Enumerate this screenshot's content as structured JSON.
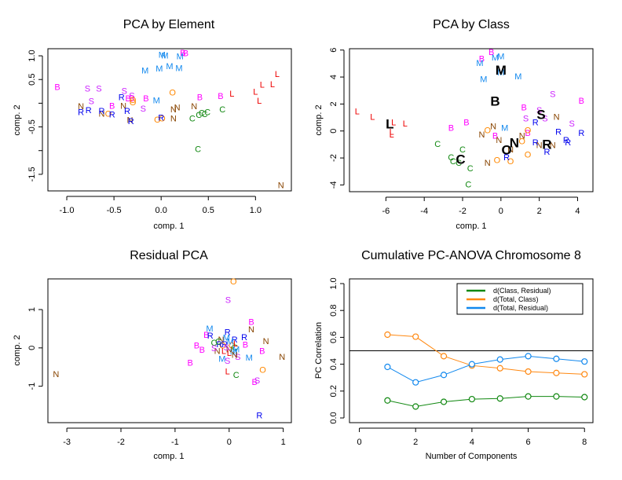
{
  "colors": {
    "B": "#ff00ff",
    "S": "#cc22ff",
    "M": "#1188ee",
    "L": "#ee0000",
    "N": "#884400",
    "R": "#0000ee",
    "O": "#ff8800",
    "C": "#118811",
    "class_center": "#000000"
  },
  "chart_data": [
    {
      "id": "pca-element",
      "type": "scatter",
      "title": "PCA by Element",
      "xlabel": "comp. 1",
      "ylabel": "comp. 2",
      "xlim": [
        -1.2,
        1.38
      ],
      "ylim": [
        -1.85,
        1.15
      ],
      "xticks": [
        -1.0,
        -0.5,
        0.0,
        0.5,
        1.0
      ],
      "xtick_labels": [
        "-1.0",
        "-0.5",
        "0.0",
        "0.5",
        "1.0"
      ],
      "yticks": [
        1.0,
        0.5,
        0.0,
        -0.5,
        -1.0,
        -1.5
      ],
      "ytick_labels": [
        "1.0",
        "0.5",
        "",
        "-0.5",
        "",
        "-1.5"
      ],
      "points": [
        {
          "label": "B",
          "x": -1.1,
          "y": 0.33
        },
        {
          "label": "S",
          "x": -0.78,
          "y": 0.3
        },
        {
          "label": "S",
          "x": -0.66,
          "y": 0.3
        },
        {
          "label": "S",
          "x": -0.74,
          "y": 0.03
        },
        {
          "label": "S",
          "x": -0.39,
          "y": 0.25
        },
        {
          "label": "S",
          "x": -0.31,
          "y": 0.15
        },
        {
          "label": "S",
          "x": -0.19,
          "y": -0.13
        },
        {
          "label": "B",
          "x": -0.52,
          "y": -0.07
        },
        {
          "label": "B",
          "x": -0.35,
          "y": 0.09
        },
        {
          "label": "B",
          "x": -0.31,
          "y": 0.09
        },
        {
          "label": "B",
          "x": -0.16,
          "y": 0.09
        },
        {
          "label": "B",
          "x": 0.41,
          "y": 0.11
        },
        {
          "label": "B",
          "x": 0.63,
          "y": 0.14
        },
        {
          "label": "B",
          "x": 0.23,
          "y": 1.05
        },
        {
          "label": "B",
          "x": 0.26,
          "y": 1.04
        },
        {
          "label": "M",
          "x": 0.01,
          "y": 1.01
        },
        {
          "label": "M",
          "x": 0.04,
          "y": 0.99
        },
        {
          "label": "M",
          "x": 0.2,
          "y": 0.98
        },
        {
          "label": "M",
          "x": -0.17,
          "y": 0.68
        },
        {
          "label": "M",
          "x": -0.02,
          "y": 0.72
        },
        {
          "label": "M",
          "x": 0.09,
          "y": 0.77
        },
        {
          "label": "M",
          "x": 0.19,
          "y": 0.73
        },
        {
          "label": "M",
          "x": -0.05,
          "y": 0.05
        },
        {
          "label": "L",
          "x": 0.75,
          "y": 0.19
        },
        {
          "label": "L",
          "x": 1.0,
          "y": 0.23
        },
        {
          "label": "L",
          "x": 1.07,
          "y": 0.38
        },
        {
          "label": "L",
          "x": 1.18,
          "y": 0.39
        },
        {
          "label": "L",
          "x": 1.23,
          "y": 0.6
        },
        {
          "label": "L",
          "x": 1.04,
          "y": 0.04
        },
        {
          "label": "O",
          "x": 0.12,
          "y": 0.21
        },
        {
          "label": "O",
          "x": -0.3,
          "y": 0.06
        },
        {
          "label": "O",
          "x": -0.3,
          "y": 0.01
        },
        {
          "label": "O",
          "x": -0.56,
          "y": -0.23
        },
        {
          "label": "O",
          "x": -0.04,
          "y": -0.36
        },
        {
          "label": "O",
          "x": 0.01,
          "y": -0.33
        },
        {
          "label": "N",
          "x": -0.85,
          "y": -0.08
        },
        {
          "label": "N",
          "x": -0.63,
          "y": -0.23
        },
        {
          "label": "N",
          "x": -0.4,
          "y": -0.07
        },
        {
          "label": "N",
          "x": -0.33,
          "y": -0.37
        },
        {
          "label": "N",
          "x": 0.13,
          "y": -0.14
        },
        {
          "label": "N",
          "x": 0.17,
          "y": -0.1
        },
        {
          "label": "N",
          "x": 0.35,
          "y": -0.08
        },
        {
          "label": "N",
          "x": 0.13,
          "y": -0.33
        },
        {
          "label": "N",
          "x": 1.27,
          "y": -1.74
        },
        {
          "label": "R",
          "x": -0.85,
          "y": -0.2
        },
        {
          "label": "R",
          "x": -0.77,
          "y": -0.16
        },
        {
          "label": "R",
          "x": -0.63,
          "y": -0.18
        },
        {
          "label": "R",
          "x": -0.52,
          "y": -0.25
        },
        {
          "label": "R",
          "x": -0.42,
          "y": 0.11
        },
        {
          "label": "R",
          "x": -0.36,
          "y": -0.18
        },
        {
          "label": "R",
          "x": -0.32,
          "y": -0.39
        },
        {
          "label": "R",
          "x": 0.0,
          "y": -0.32
        },
        {
          "label": "C",
          "x": 0.33,
          "y": -0.33
        },
        {
          "label": "C",
          "x": 0.4,
          "y": -0.26
        },
        {
          "label": "C",
          "x": 0.43,
          "y": -0.22
        },
        {
          "label": "C",
          "x": 0.46,
          "y": -0.24
        },
        {
          "label": "C",
          "x": 0.49,
          "y": -0.2
        },
        {
          "label": "C",
          "x": 0.65,
          "y": -0.14
        },
        {
          "label": "C",
          "x": 0.39,
          "y": -0.98
        }
      ]
    },
    {
      "id": "pca-class",
      "type": "scatter",
      "title": "PCA by Class",
      "xlabel": "comp. 1",
      "ylabel": "comp. 2",
      "xlim": [
        -7.9,
        4.8
      ],
      "ylim": [
        -4.5,
        6.1
      ],
      "xticks": [
        -6,
        -4,
        -2,
        0,
        2,
        4
      ],
      "xtick_labels": [
        "-6",
        "-4",
        "-2",
        "0",
        "2",
        "4"
      ],
      "yticks": [
        6,
        4,
        2,
        0,
        -2,
        -4
      ],
      "ytick_labels": [
        "6",
        "4",
        "2",
        "0",
        "-2",
        "-4"
      ],
      "points": [
        {
          "label": "L",
          "x": -7.5,
          "y": 1.4
        },
        {
          "label": "L",
          "x": -6.7,
          "y": 1.0
        },
        {
          "label": "L",
          "x": -5.6,
          "y": 0.6
        },
        {
          "label": "L",
          "x": -5.0,
          "y": 0.5
        },
        {
          "label": "L",
          "x": -5.7,
          "y": -0.3
        },
        {
          "label": "L",
          "x": -5.7,
          "y": -0.1
        },
        {
          "label": "B",
          "x": -0.5,
          "y": 5.8
        },
        {
          "label": "B",
          "x": -1.0,
          "y": 5.3
        },
        {
          "label": "B",
          "x": -2.6,
          "y": 0.2
        },
        {
          "label": "B",
          "x": -1.8,
          "y": 0.6
        },
        {
          "label": "B",
          "x": -0.3,
          "y": -0.4
        },
        {
          "label": "B",
          "x": 1.2,
          "y": 1.7
        },
        {
          "label": "B",
          "x": 1.4,
          "y": -0.2
        },
        {
          "label": "B",
          "x": 4.2,
          "y": 2.2
        },
        {
          "label": "M",
          "x": -1.1,
          "y": 5.0
        },
        {
          "label": "M",
          "x": -0.3,
          "y": 5.4
        },
        {
          "label": "M",
          "x": 0.0,
          "y": 5.5
        },
        {
          "label": "M",
          "x": -0.9,
          "y": 3.8
        },
        {
          "label": "M",
          "x": 0.0,
          "y": 4.3
        },
        {
          "label": "M",
          "x": 0.9,
          "y": 4.0
        },
        {
          "label": "M",
          "x": 0.2,
          "y": 0.2
        },
        {
          "label": "S",
          "x": 2.7,
          "y": 2.7
        },
        {
          "label": "S",
          "x": 1.3,
          "y": 0.9
        },
        {
          "label": "S",
          "x": 2.0,
          "y": 1.5
        },
        {
          "label": "S",
          "x": 2.3,
          "y": 0.9
        },
        {
          "label": "S",
          "x": 3.7,
          "y": 0.5
        },
        {
          "label": "N",
          "x": -0.4,
          "y": 0.3
        },
        {
          "label": "N",
          "x": -1.0,
          "y": -0.3
        },
        {
          "label": "N",
          "x": -0.1,
          "y": -0.7
        },
        {
          "label": "N",
          "x": 1.1,
          "y": -0.4
        },
        {
          "label": "N",
          "x": 2.9,
          "y": 1.0
        },
        {
          "label": "N",
          "x": 2.0,
          "y": -1.1
        },
        {
          "label": "N",
          "x": 2.7,
          "y": -1.1
        },
        {
          "label": "N",
          "x": 0.5,
          "y": -1.4
        },
        {
          "label": "N",
          "x": -0.7,
          "y": -2.4
        },
        {
          "label": "O",
          "x": -0.7,
          "y": 0.0
        },
        {
          "label": "O",
          "x": 1.4,
          "y": 0.0
        },
        {
          "label": "O",
          "x": 1.1,
          "y": -0.8
        },
        {
          "label": "O",
          "x": 1.4,
          "y": -1.8
        },
        {
          "label": "O",
          "x": -0.2,
          "y": -2.2
        },
        {
          "label": "O",
          "x": 0.5,
          "y": -2.3
        },
        {
          "label": "R",
          "x": 1.8,
          "y": 0.6
        },
        {
          "label": "R",
          "x": 3.0,
          "y": -0.1
        },
        {
          "label": "R",
          "x": 4.2,
          "y": -0.2
        },
        {
          "label": "R",
          "x": 3.4,
          "y": -0.7
        },
        {
          "label": "R",
          "x": 3.5,
          "y": -0.9
        },
        {
          "label": "R",
          "x": 1.8,
          "y": -0.9
        },
        {
          "label": "R",
          "x": 2.4,
          "y": -1.6
        },
        {
          "label": "R",
          "x": 0.3,
          "y": -2.0
        },
        {
          "label": "C",
          "x": -3.3,
          "y": -1.0
        },
        {
          "label": "C",
          "x": -2.0,
          "y": -1.4
        },
        {
          "label": "C",
          "x": -2.6,
          "y": -2.0
        },
        {
          "label": "C",
          "x": -2.5,
          "y": -2.3
        },
        {
          "label": "C",
          "x": -2.2,
          "y": -2.4
        },
        {
          "label": "C",
          "x": -1.6,
          "y": -2.8
        },
        {
          "label": "C",
          "x": -1.7,
          "y": -4.0
        }
      ],
      "class_centers": [
        {
          "label": "M",
          "x": 0.0,
          "y": 4.5
        },
        {
          "label": "B",
          "x": -0.3,
          "y": 2.2
        },
        {
          "label": "L",
          "x": -5.8,
          "y": 0.5
        },
        {
          "label": "S",
          "x": 2.1,
          "y": 1.2
        },
        {
          "label": "N",
          "x": 0.7,
          "y": -0.9
        },
        {
          "label": "O",
          "x": 0.3,
          "y": -1.4
        },
        {
          "label": "R",
          "x": 2.4,
          "y": -1.0
        },
        {
          "label": "C",
          "x": -2.1,
          "y": -2.1
        }
      ]
    },
    {
      "id": "residual-pca",
      "type": "scatter",
      "title": "Residual PCA",
      "xlabel": "comp. 1",
      "ylabel": "comp. 2",
      "xlim": [
        -3.35,
        1.15
      ],
      "ylim": [
        -1.95,
        1.8
      ],
      "xticks": [
        -3,
        -2,
        -1,
        0,
        1
      ],
      "xtick_labels": [
        "-3",
        "-2",
        "-1",
        "0",
        "1"
      ],
      "yticks": [
        1,
        0,
        -1
      ],
      "ytick_labels": [
        "1",
        "0",
        "-1"
      ],
      "points": [
        {
          "label": "N",
          "x": -3.2,
          "y": -0.7
        },
        {
          "label": "O",
          "x": 0.08,
          "y": 1.72
        },
        {
          "label": "S",
          "x": -0.02,
          "y": 1.24
        },
        {
          "label": "B",
          "x": 0.41,
          "y": 0.66
        },
        {
          "label": "N",
          "x": 0.41,
          "y": 0.47
        },
        {
          "label": "N",
          "x": 0.68,
          "y": 0.16
        },
        {
          "label": "N",
          "x": 0.98,
          "y": -0.25
        },
        {
          "label": "B",
          "x": 0.3,
          "y": 0.07
        },
        {
          "label": "B",
          "x": 0.61,
          "y": -0.1
        },
        {
          "label": "M",
          "x": 0.37,
          "y": -0.27
        },
        {
          "label": "O",
          "x": 0.62,
          "y": -0.59
        },
        {
          "label": "B",
          "x": 0.47,
          "y": -0.91
        },
        {
          "label": "S",
          "x": 0.52,
          "y": -0.86
        },
        {
          "label": "R",
          "x": 0.56,
          "y": -1.78
        },
        {
          "label": "B",
          "x": -0.72,
          "y": -0.4
        },
        {
          "label": "B",
          "x": -0.6,
          "y": 0.05
        },
        {
          "label": "B",
          "x": -0.5,
          "y": -0.06
        },
        {
          "label": "M",
          "x": -0.36,
          "y": 0.49
        },
        {
          "label": "B",
          "x": -0.42,
          "y": 0.32
        },
        {
          "label": "R",
          "x": -0.35,
          "y": 0.3
        },
        {
          "label": "R",
          "x": -0.03,
          "y": 0.4
        },
        {
          "label": "R",
          "x": 0.1,
          "y": 0.2
        },
        {
          "label": "R",
          "x": 0.28,
          "y": 0.26
        },
        {
          "label": "L",
          "x": -0.03,
          "y": -0.63
        },
        {
          "label": "C",
          "x": 0.13,
          "y": -0.72
        },
        {
          "label": "M",
          "x": -0.13,
          "y": -0.3
        },
        {
          "label": "S",
          "x": -0.03,
          "y": -0.35
        },
        {
          "label": "S",
          "x": 0.16,
          "y": -0.25
        },
        {
          "label": "C",
          "x": -0.28,
          "y": 0.12
        },
        {
          "label": "N",
          "x": -0.22,
          "y": -0.1
        },
        {
          "label": "M",
          "x": -0.05,
          "y": 0.25
        },
        {
          "label": "O",
          "x": 0.05,
          "y": 0.05
        },
        {
          "label": "C",
          "x": 0.1,
          "y": 0.0
        },
        {
          "label": "L",
          "x": 0.0,
          "y": -0.15
        },
        {
          "label": "S",
          "x": -0.28,
          "y": -0.02
        },
        {
          "label": "N",
          "x": -0.15,
          "y": 0.2
        },
        {
          "label": "R",
          "x": -0.08,
          "y": 0.08
        },
        {
          "label": "M",
          "x": 0.08,
          "y": -0.12
        },
        {
          "label": "N",
          "x": 0.1,
          "y": -0.2
        },
        {
          "label": "L",
          "x": 0.12,
          "y": 0.1
        },
        {
          "label": "O",
          "x": -0.12,
          "y": 0.05
        },
        {
          "label": "M",
          "x": 0.02,
          "y": 0.15
        },
        {
          "label": "R",
          "x": -0.18,
          "y": 0.08
        },
        {
          "label": "N",
          "x": 0.0,
          "y": -0.05
        },
        {
          "label": "C",
          "x": -0.2,
          "y": 0.15
        },
        {
          "label": "L",
          "x": -0.1,
          "y": -0.1
        },
        {
          "label": "M",
          "x": 0.13,
          "y": -0.05
        },
        {
          "label": "S",
          "x": -0.05,
          "y": 0.0
        }
      ]
    },
    {
      "id": "pc-anova",
      "type": "line",
      "title": "Cumulative PC-ANOVA Chromosome 8",
      "xlabel": "Number of Components",
      "ylabel": "PC Correlation",
      "xlim": [
        -0.35,
        8.3
      ],
      "ylim": [
        -0.035,
        1.035
      ],
      "xticks": [
        0,
        2,
        4,
        6,
        8
      ],
      "xtick_labels": [
        "0",
        "2",
        "4",
        "6",
        "8"
      ],
      "yticks": [
        0.0,
        0.2,
        0.4,
        0.6,
        0.8,
        1.0
      ],
      "ytick_labels": [
        "0.0",
        "0.2",
        "0.4",
        "0.6",
        "0.8",
        "1.0"
      ],
      "hline": 0.5,
      "legend_position": "top-right",
      "x": [
        1,
        2,
        3,
        4,
        5,
        6,
        7,
        8
      ],
      "series": [
        {
          "name": "d(Class, Residual)",
          "color": "#118811",
          "values": [
            0.13,
            0.085,
            0.12,
            0.14,
            0.145,
            0.16,
            0.16,
            0.155
          ]
        },
        {
          "name": "d(Total, Class)",
          "color": "#ff8811",
          "values": [
            0.62,
            0.605,
            0.46,
            0.39,
            0.37,
            0.345,
            0.335,
            0.325
          ]
        },
        {
          "name": "d(Total, Residual)",
          "color": "#1188ee",
          "values": [
            0.38,
            0.265,
            0.32,
            0.4,
            0.435,
            0.46,
            0.44,
            0.42
          ]
        }
      ]
    }
  ]
}
